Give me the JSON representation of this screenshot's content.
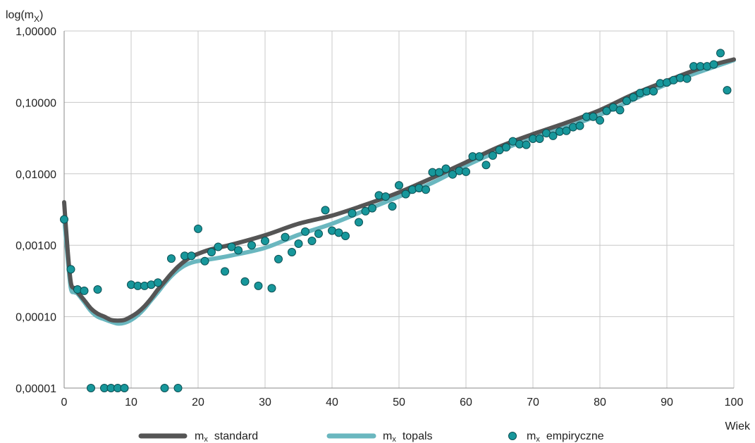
{
  "chart_data": {
    "type": "line",
    "ylabel_main": "log(m",
    "ylabel_sub": "X",
    "ylabel_close": ")",
    "xlabel": "Wiek",
    "y_scale": "log",
    "xlim": [
      0,
      100
    ],
    "ylim": [
      1e-05,
      1.0
    ],
    "grid": true,
    "x_ticks": [
      0,
      10,
      20,
      30,
      40,
      50,
      60,
      70,
      80,
      90,
      100
    ],
    "x_tick_labels": [
      "0",
      "10",
      "20",
      "30",
      "40",
      "50",
      "60",
      "70",
      "80",
      "90",
      "100"
    ],
    "y_ticks": [
      1e-05,
      0.0001,
      0.001,
      0.01,
      0.1,
      1.0
    ],
    "y_tick_labels": [
      "0,00001",
      "0,00010",
      "0,00100",
      "0,01000",
      "0,10000",
      "1,00000"
    ],
    "legend_position": "bottom",
    "colors": {
      "standard": "#555555",
      "topals": "#6ab7bf",
      "empirical_fill": "#17979b",
      "empirical_stroke": "#0b4f53",
      "grid": "#c8c8c8"
    },
    "series": [
      {
        "legend_main": "m",
        "legend_sub": "x",
        "legend_rest": "standard",
        "kind": "line",
        "x": [
          0,
          0.5,
          1,
          1.5,
          2,
          3,
          4,
          5,
          6,
          7,
          8,
          9,
          10,
          11,
          12,
          13,
          14,
          15,
          16,
          17,
          18,
          19,
          20,
          22,
          25,
          30,
          35,
          40,
          45,
          50,
          55,
          60,
          65,
          70,
          75,
          80,
          85,
          90,
          95,
          100
        ],
        "y": [
          0.004,
          0.0009,
          0.0003,
          0.00025,
          0.00022,
          0.00017,
          0.00013,
          0.00011,
          0.0001,
          9e-05,
          8.8e-05,
          9e-05,
          0.0001,
          0.000115,
          0.00014,
          0.00018,
          0.00024,
          0.00031,
          0.0004,
          0.0005,
          0.0006,
          0.00069,
          0.00076,
          0.00088,
          0.00102,
          0.00138,
          0.002,
          0.0026,
          0.0037,
          0.0055,
          0.0088,
          0.0145,
          0.024,
          0.036,
          0.052,
          0.078,
          0.13,
          0.2,
          0.3,
          0.4
        ]
      },
      {
        "legend_main": "m",
        "legend_sub": "x",
        "legend_rest": "topals",
        "kind": "line",
        "x": [
          0,
          0.5,
          1,
          1.5,
          2,
          3,
          4,
          5,
          6,
          7,
          8,
          9,
          10,
          11,
          12,
          13,
          14,
          15,
          16,
          17,
          18,
          19,
          20,
          22,
          25,
          30,
          35,
          40,
          45,
          50,
          55,
          60,
          65,
          70,
          75,
          80,
          85,
          90,
          95,
          100
        ],
        "y": [
          0.0025,
          0.0007,
          0.00025,
          0.00022,
          0.00021,
          0.00016,
          0.00012,
          0.0001,
          9.2e-05,
          8.5e-05,
          8e-05,
          8.2e-05,
          9e-05,
          0.000105,
          0.00013,
          0.00017,
          0.00022,
          0.00029,
          0.00037,
          0.00045,
          0.00052,
          0.00057,
          0.0006,
          0.00064,
          0.00072,
          0.00092,
          0.0014,
          0.002,
          0.0031,
          0.0048,
          0.0075,
          0.013,
          0.021,
          0.032,
          0.045,
          0.067,
          0.11,
          0.18,
          0.27,
          0.39
        ]
      },
      {
        "legend_main": "m",
        "legend_sub": "x",
        "legend_rest": "empiryczne",
        "kind": "scatter",
        "x": [
          0,
          1,
          2,
          3,
          4,
          5,
          6,
          7,
          8,
          9,
          10,
          11,
          12,
          13,
          14,
          15,
          16,
          17,
          18,
          19,
          20,
          21,
          22,
          23,
          24,
          25,
          26,
          27,
          28,
          29,
          30,
          31,
          32,
          33,
          34,
          35,
          36,
          37,
          38,
          39,
          40,
          41,
          42,
          43,
          44,
          45,
          46,
          47,
          48,
          49,
          50,
          51,
          52,
          53,
          54,
          55,
          56,
          57,
          58,
          59,
          60,
          61,
          62,
          63,
          64,
          65,
          66,
          67,
          68,
          69,
          70,
          71,
          72,
          73,
          74,
          75,
          76,
          77,
          78,
          79,
          80,
          81,
          82,
          83,
          84,
          85,
          86,
          87,
          88,
          89,
          90,
          91,
          92,
          93,
          94,
          95,
          96,
          97,
          98,
          99
        ],
        "y": [
          0.0023,
          0.00046,
          0.00024,
          0.00023,
          1e-05,
          0.00024,
          1e-05,
          1e-05,
          1e-05,
          1e-05,
          0.00028,
          0.00027,
          0.00027,
          0.00028,
          0.0003,
          1e-05,
          0.00065,
          1e-05,
          0.00071,
          0.00071,
          0.0017,
          0.0006,
          0.0008,
          0.00095,
          0.00043,
          0.00095,
          0.00085,
          0.00031,
          0.001,
          0.00027,
          0.00115,
          0.00025,
          0.00064,
          0.0013,
          0.0008,
          0.00105,
          0.00155,
          0.00115,
          0.00145,
          0.0031,
          0.0016,
          0.0015,
          0.00135,
          0.0028,
          0.0021,
          0.003,
          0.0033,
          0.005,
          0.0048,
          0.0035,
          0.0069,
          0.0052,
          0.006,
          0.0063,
          0.006,
          0.0105,
          0.0105,
          0.0118,
          0.0098,
          0.011,
          0.0107,
          0.0175,
          0.0175,
          0.0133,
          0.018,
          0.0215,
          0.0235,
          0.0285,
          0.026,
          0.0255,
          0.031,
          0.031,
          0.037,
          0.034,
          0.039,
          0.04,
          0.045,
          0.047,
          0.063,
          0.063,
          0.056,
          0.076,
          0.085,
          0.078,
          0.105,
          0.118,
          0.135,
          0.143,
          0.143,
          0.185,
          0.19,
          0.205,
          0.22,
          0.215,
          0.32,
          0.32,
          0.32,
          0.34,
          0.49,
          0.148
        ]
      }
    ]
  }
}
